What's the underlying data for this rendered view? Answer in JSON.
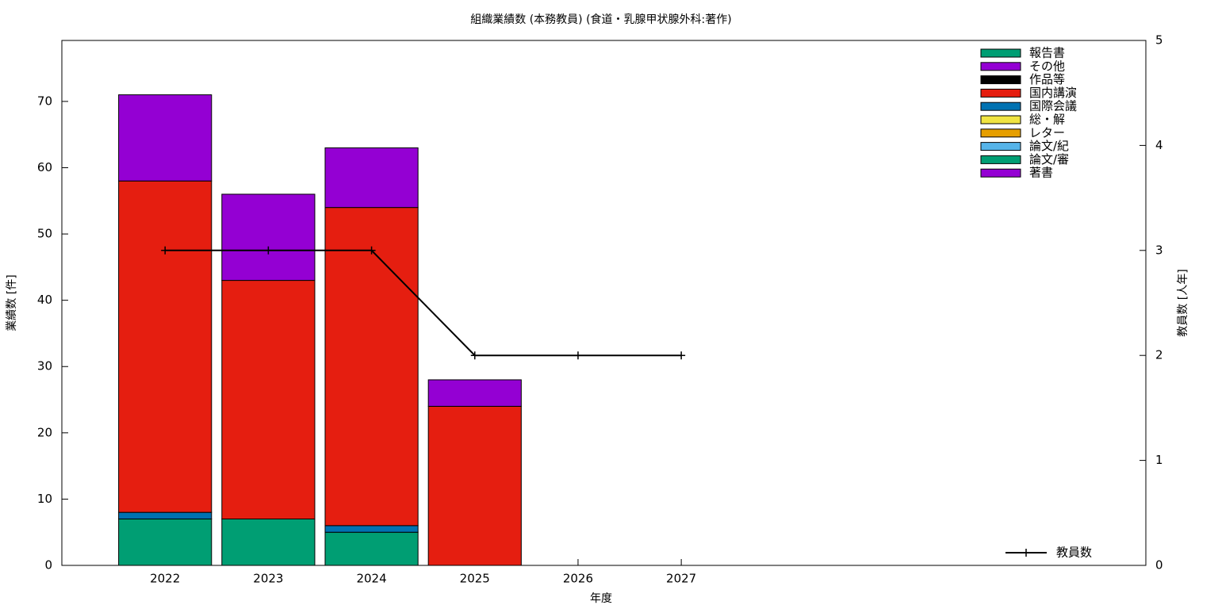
{
  "chart_data": {
    "type": "bar",
    "title": "組織業績数 (本務教員) (食道・乳腺甲状腺外科:著作)",
    "xlabel": "年度",
    "ylabel": "業績数 [件]",
    "y2label": "教員数 [人年]",
    "x": [
      2022,
      2023,
      2024,
      2025,
      2026,
      2027
    ],
    "xlim": [
      2021,
      2031.5
    ],
    "xticks": [
      2022,
      2023,
      2024,
      2025,
      2026,
      2027
    ],
    "ylim": [
      0,
      79.2
    ],
    "yticks": [
      0,
      10,
      20,
      30,
      40,
      50,
      60,
      70
    ],
    "y2lim": [
      0,
      5
    ],
    "y2ticks": [
      0,
      1,
      2,
      3,
      4,
      5
    ],
    "stacked": true,
    "legend": "top right",
    "series": [
      {
        "name": "報告書",
        "color": "#009e73",
        "values": [
          0,
          0,
          0,
          0,
          0,
          0
        ]
      },
      {
        "name": "その他",
        "color": "#9400d3",
        "values": [
          13,
          13,
          9,
          4,
          0,
          0
        ]
      },
      {
        "name": "作品等",
        "color": "#000000",
        "values": [
          0,
          0,
          0,
          0,
          0,
          0
        ]
      },
      {
        "name": "国内講演",
        "color": "#e51e10",
        "values": [
          50,
          36,
          48,
          24,
          0,
          0
        ]
      },
      {
        "name": "国際会議",
        "color": "#0072b2",
        "values": [
          1,
          0,
          1,
          0,
          0,
          0
        ]
      },
      {
        "name": "総・解",
        "color": "#f0e442",
        "values": [
          0,
          0,
          0,
          0,
          0,
          0
        ]
      },
      {
        "name": "レター",
        "color": "#e69f00",
        "values": [
          0,
          0,
          0,
          0,
          0,
          0
        ]
      },
      {
        "name": "論文/紀",
        "color": "#56b4e9",
        "values": [
          0,
          0,
          0,
          0,
          0,
          0
        ]
      },
      {
        "name": "論文/審",
        "color": "#009e73",
        "values": [
          7,
          7,
          5,
          0,
          0,
          0
        ]
      },
      {
        "name": "著書",
        "color": "#9400d3",
        "values": [
          0,
          0,
          0,
          0,
          0,
          0
        ]
      },
      {
        "name": "教員数",
        "type": "line",
        "axis": "y2",
        "color": "#000000",
        "values": [
          3,
          3,
          3,
          2,
          2,
          2
        ]
      }
    ]
  }
}
